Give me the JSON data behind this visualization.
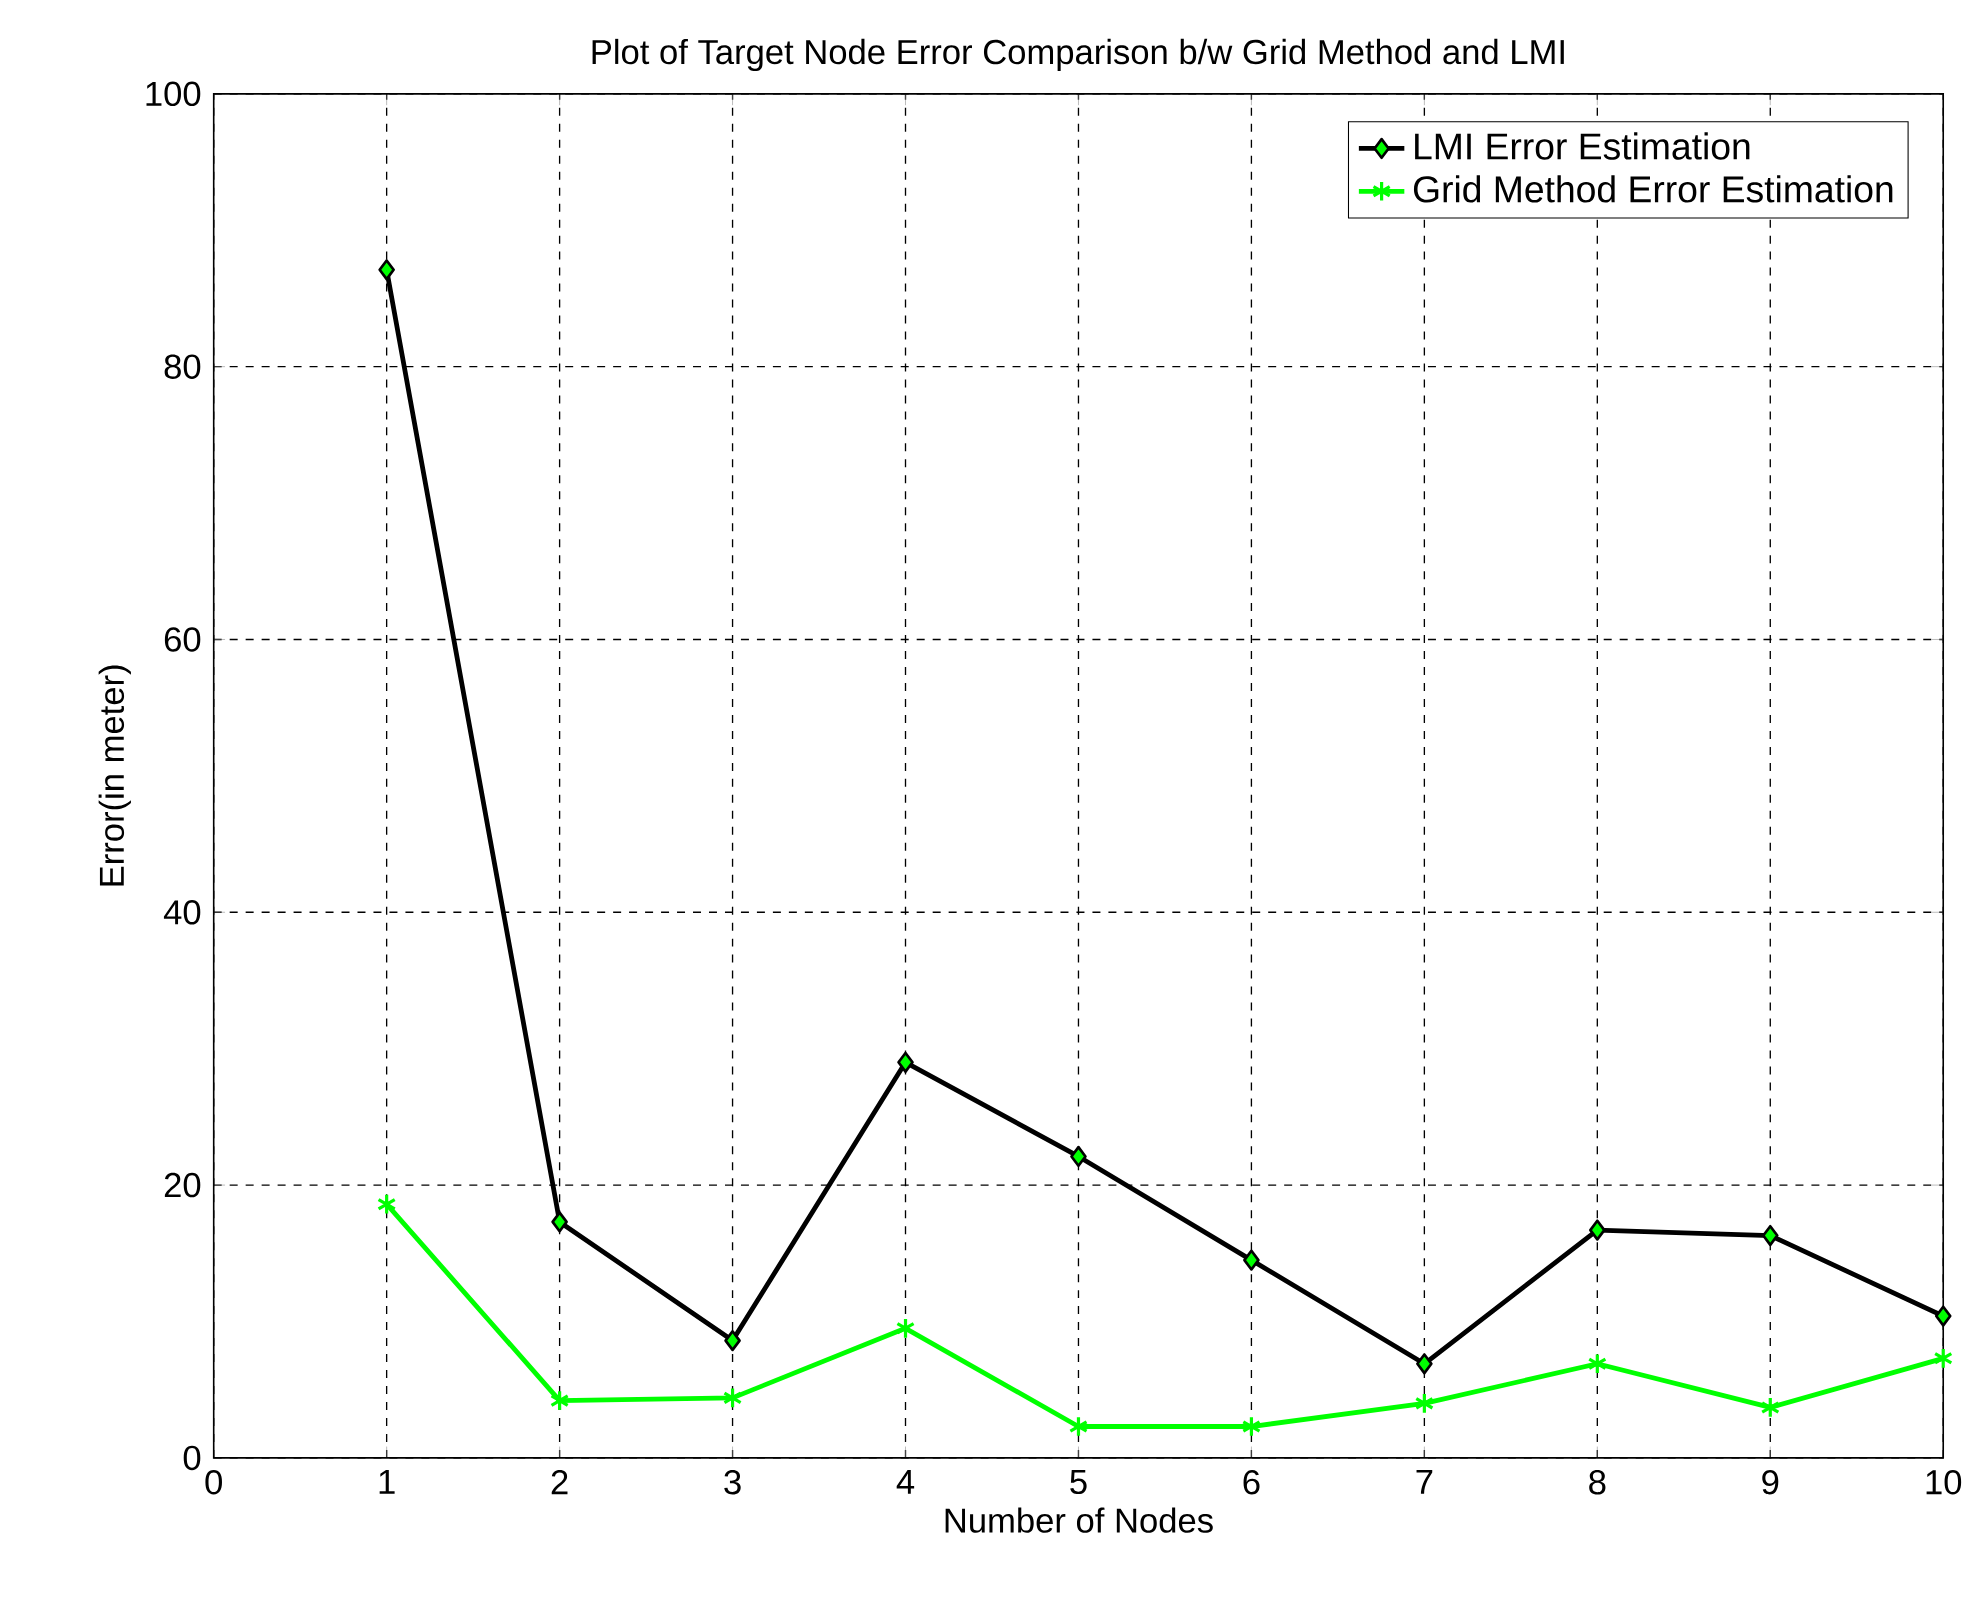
{
  "chart_data": {
    "type": "line",
    "title": "Plot of Target Node Error Comparison b/w Grid Method and LMI",
    "xlabel": "Number of Nodes",
    "ylabel": "Error(in meter)",
    "x": [
      1,
      2,
      3,
      4,
      5,
      6,
      7,
      8,
      9,
      10
    ],
    "series": [
      {
        "name": "LMI Error Estimation",
        "color": "#000000",
        "marker": "diamond",
        "values": [
          87.1,
          17.3,
          8.6,
          29.0,
          22.1,
          14.5,
          6.9,
          16.7,
          16.3,
          10.4
        ]
      },
      {
        "name": "Grid Method Error Estimation",
        "color": "#00ff00",
        "marker": "cross",
        "values": [
          18.6,
          4.2,
          4.4,
          9.5,
          2.3,
          2.3,
          4.0,
          6.9,
          3.7,
          7.3
        ]
      }
    ],
    "xlim": [
      0,
      10
    ],
    "ylim": [
      0,
      100
    ],
    "xticks": [
      0,
      1,
      2,
      3,
      4,
      5,
      6,
      7,
      8,
      9,
      10
    ],
    "yticks": [
      0,
      20,
      40,
      60,
      80,
      100
    ],
    "grid": true,
    "legend": "top right",
    "line_style": "solid"
  }
}
